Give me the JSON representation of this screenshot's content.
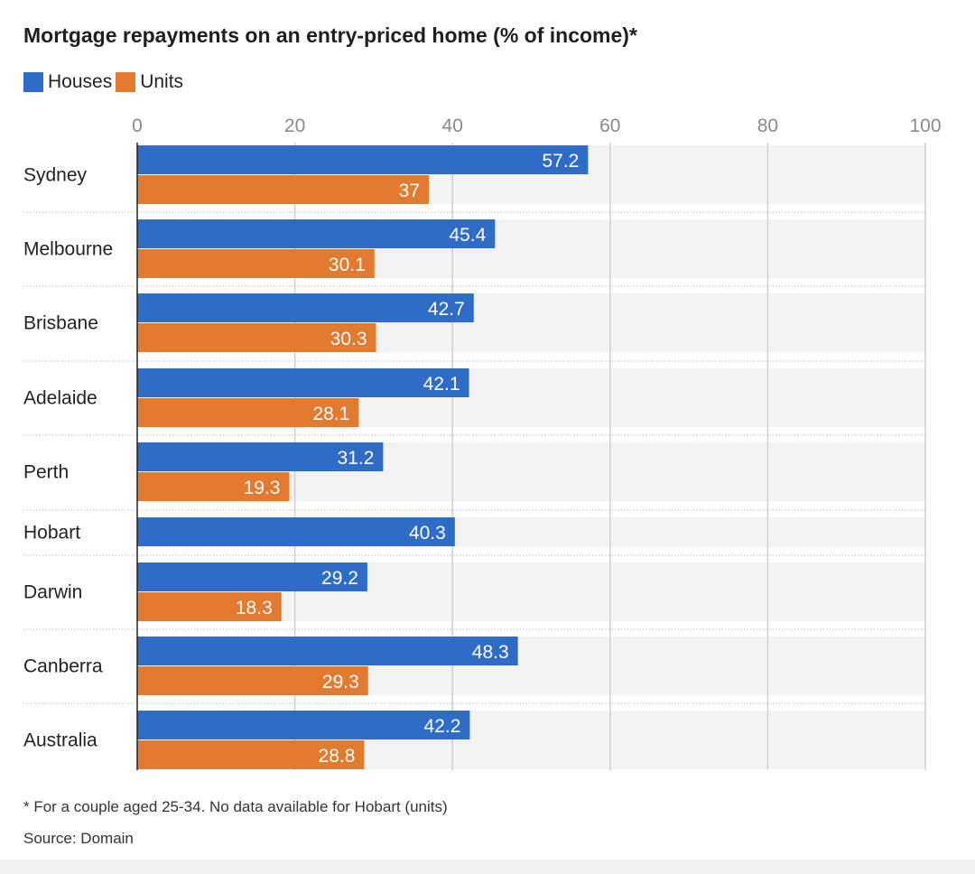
{
  "colors": {
    "houses": "#2f6cc8",
    "units": "#e27a2f",
    "row_bg": "#f3f3f3"
  },
  "chart_data": {
    "type": "bar",
    "orientation": "horizontal",
    "title": "Mortgage repayments on an entry-priced home (% of income)*",
    "categories": [
      "Sydney",
      "Melbourne",
      "Brisbane",
      "Adelaide",
      "Perth",
      "Hobart",
      "Darwin",
      "Canberra",
      "Australia"
    ],
    "series": [
      {
        "name": "Houses",
        "values": [
          57.2,
          45.4,
          42.7,
          42.1,
          31.2,
          40.3,
          29.2,
          48.3,
          42.2
        ]
      },
      {
        "name": "Units",
        "values": [
          37,
          30.1,
          30.3,
          28.1,
          19.3,
          null,
          18.3,
          29.3,
          28.8
        ]
      }
    ],
    "xlim": [
      0,
      100
    ],
    "x_ticks": [
      "0",
      "20",
      "40",
      "60",
      "80",
      "100"
    ],
    "legend": "top-left",
    "grid": true
  },
  "footnote": "* For a couple aged 25-34. No data available for Hobart (units)",
  "source": "Source: Domain"
}
